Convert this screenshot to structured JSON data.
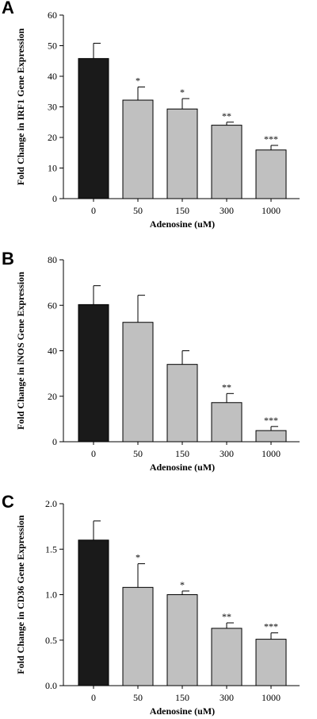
{
  "colors": {
    "control": "#1a1a1a",
    "treated": "#c0c0c0",
    "axis": "#000000"
  },
  "chart_data": [
    {
      "type": "bar",
      "panel": "A",
      "categories": [
        "0",
        "50",
        "150",
        "300",
        "1000"
      ],
      "values": [
        45.8,
        32.2,
        29.3,
        24.0,
        15.9
      ],
      "errors": [
        5.0,
        4.3,
        3.4,
        1.0,
        1.5
      ],
      "significance": [
        "",
        "*",
        "*",
        "**",
        "***"
      ],
      "xlabel": "Adenosine (uM)",
      "ylabel": "Fold Change in IRF1 Gene Expression",
      "ylim": [
        0,
        60
      ],
      "yticks": [
        "0",
        "10",
        "20",
        "30",
        "40",
        "50",
        "60"
      ],
      "grid": false,
      "legend": "none"
    },
    {
      "type": "bar",
      "panel": "B",
      "categories": [
        "0",
        "50",
        "150",
        "300",
        "1000"
      ],
      "values": [
        60.3,
        52.5,
        34.0,
        17.2,
        4.9
      ],
      "errors": [
        8.3,
        11.9,
        6.0,
        4.0,
        1.8
      ],
      "significance": [
        "",
        "",
        "",
        "**",
        "***"
      ],
      "xlabel": "Adenosine (uM)",
      "ylabel": "Fold Change in iNOS Gene Expression",
      "ylim": [
        0,
        80
      ],
      "yticks": [
        "0",
        "20",
        "40",
        "60",
        "80"
      ],
      "grid": false,
      "legend": "none"
    },
    {
      "type": "bar",
      "panel": "C",
      "categories": [
        "0",
        "50",
        "150",
        "300",
        "1000"
      ],
      "values": [
        1.6,
        1.08,
        1.0,
        0.63,
        0.51
      ],
      "errors": [
        0.21,
        0.26,
        0.04,
        0.06,
        0.07
      ],
      "significance": [
        "",
        "*",
        "*",
        "**",
        "***"
      ],
      "xlabel": "Adenosine (uM)",
      "ylabel": "Fold Change in CD36 Gene Expression",
      "ylim": [
        0,
        2.0
      ],
      "yticks": [
        "0.0",
        "0.5",
        "1.0",
        "1.5",
        "2.0"
      ],
      "grid": false,
      "legend": "none"
    }
  ]
}
